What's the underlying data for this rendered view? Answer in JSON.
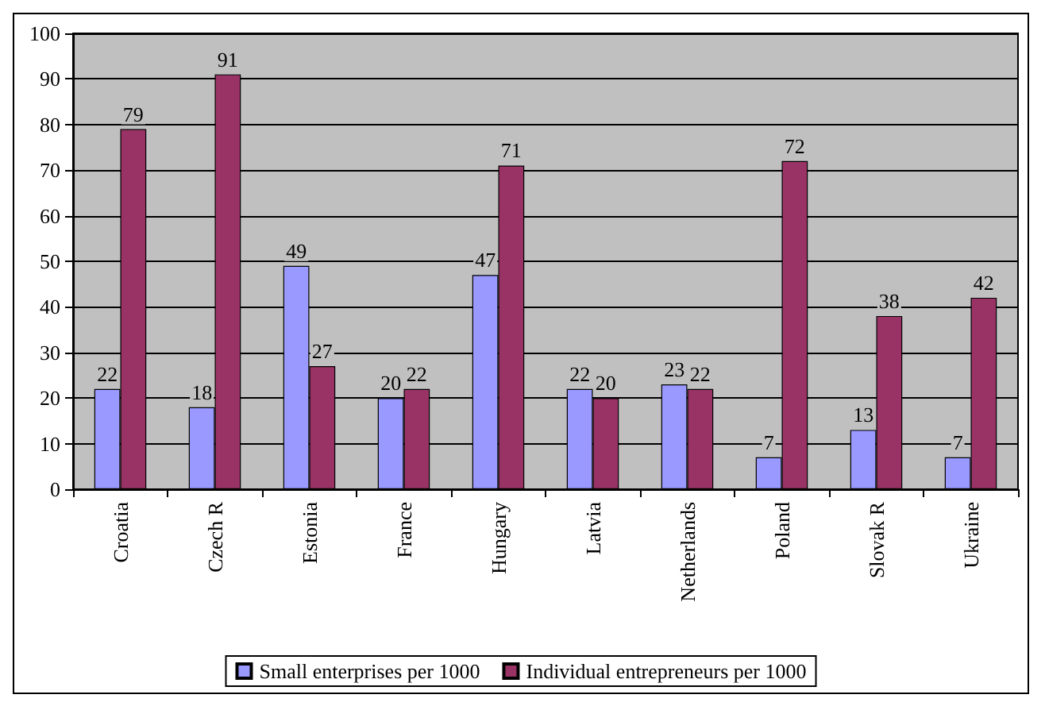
{
  "chart_data": {
    "type": "bar",
    "categories": [
      "Croatia",
      "Czech R",
      "Estonia",
      "France",
      "Hungary",
      "Latvia",
      "Netherlands",
      "Poland",
      "Slovak R",
      "Ukraine"
    ],
    "series": [
      {
        "name": "Small enterprises per 1000",
        "color": "#9999ff",
        "values": [
          22,
          18,
          49,
          20,
          47,
          22,
          23,
          7,
          13,
          7
        ]
      },
      {
        "name": "Individual entrepreneurs per 1000",
        "color": "#993366",
        "values": [
          79,
          91,
          27,
          22,
          71,
          20,
          22,
          72,
          38,
          42
        ]
      }
    ],
    "ylim": [
      0,
      100
    ],
    "yticks": [
      0,
      10,
      20,
      30,
      40,
      50,
      60,
      70,
      80,
      90,
      100
    ],
    "grid": "y",
    "legend": "bottom",
    "data_labels": true
  }
}
